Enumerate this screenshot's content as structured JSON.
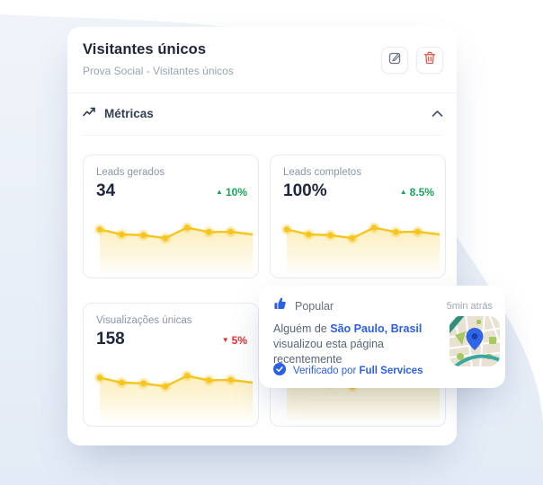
{
  "card": {
    "title": "Visitantes únicos",
    "subtitle": "Prova Social - Visitantes únicos",
    "actions": {
      "edit_icon": "pencil-square-icon",
      "delete_icon": "trash-icon"
    },
    "section": {
      "label": "Métricas",
      "icon": "trending-up-icon",
      "collapse_icon": "chevron-up-icon"
    }
  },
  "metrics": [
    {
      "label": "Leads gerados",
      "value": "34",
      "arrow": "▲",
      "delta": "10%",
      "direction": "up",
      "spark": [
        75,
        62,
        60,
        52,
        80,
        68,
        69,
        62
      ]
    },
    {
      "label": "Leads completos",
      "value": "100%",
      "arrow": "▲",
      "delta": "8.5%",
      "direction": "up",
      "spark": [
        75,
        62,
        60,
        52,
        80,
        68,
        69,
        62
      ]
    },
    {
      "label": "Visualizações únicas",
      "value": "158",
      "arrow": "▼",
      "delta": "5%",
      "direction": "down",
      "spark": [
        75,
        62,
        60,
        52,
        80,
        68,
        69,
        62
      ]
    },
    {
      "label": "",
      "value": "",
      "arrow": "",
      "delta": "",
      "direction": "up",
      "spark": [
        75,
        62,
        60,
        52,
        80,
        68,
        69,
        62
      ]
    }
  ],
  "popup": {
    "badge_icon": "thumbs-up-icon",
    "badge_label": "Popular",
    "timestamp": "5min atrás",
    "message_prefix": "Alguém de ",
    "location": "São Paulo, Brasil",
    "message_suffix": "visualizou esta página recentemente",
    "verified_icon": "check-badge-icon",
    "verified_prefix": "Verificado por ",
    "verified_name": "Full Services",
    "map_icon": "map-thumbnail"
  },
  "colors": {
    "accent_blue": "#2b5fe6",
    "spark_yellow": "#f6c51e",
    "delta_green": "#17a45c",
    "delta_red": "#e42f2f",
    "blob_top": "#f0f4fa",
    "blob_bottom": "#e3ebf6",
    "danger_icon": "#e25c49"
  }
}
